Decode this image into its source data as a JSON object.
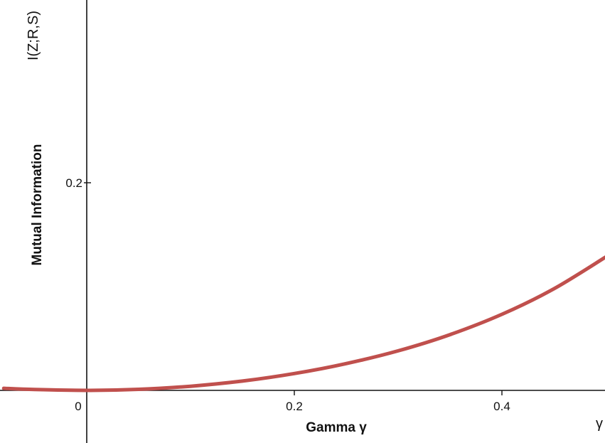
{
  "chart_data": {
    "type": "line",
    "xlabel": "Gamma γ",
    "ylabel": "Mutual Information",
    "x_axis_symbol": "γ",
    "y_axis_symbol": "I(Z;R,S)",
    "xlim": [
      -0.08,
      0.5
    ],
    "ylim": [
      0,
      0.25
    ],
    "x_ticks": [
      {
        "value": 0,
        "label": "0"
      },
      {
        "value": 0.2,
        "label": "0.2"
      },
      {
        "value": 0.4,
        "label": "0.4"
      }
    ],
    "y_ticks": [
      {
        "value": 0.2,
        "label": "0.2"
      }
    ],
    "grid": false,
    "series": [
      {
        "color": "#c0504d",
        "x": [
          -0.08,
          -0.05,
          0,
          0.05,
          0.1,
          0.15,
          0.2,
          0.25,
          0.3,
          0.35,
          0.4,
          0.45,
          0.5
        ],
        "y": [
          0.002,
          0.0008,
          0,
          0.001,
          0.004,
          0.009,
          0.0162,
          0.0258,
          0.0381,
          0.0537,
          0.0733,
          0.0978,
          0.1285
        ]
      }
    ]
  }
}
